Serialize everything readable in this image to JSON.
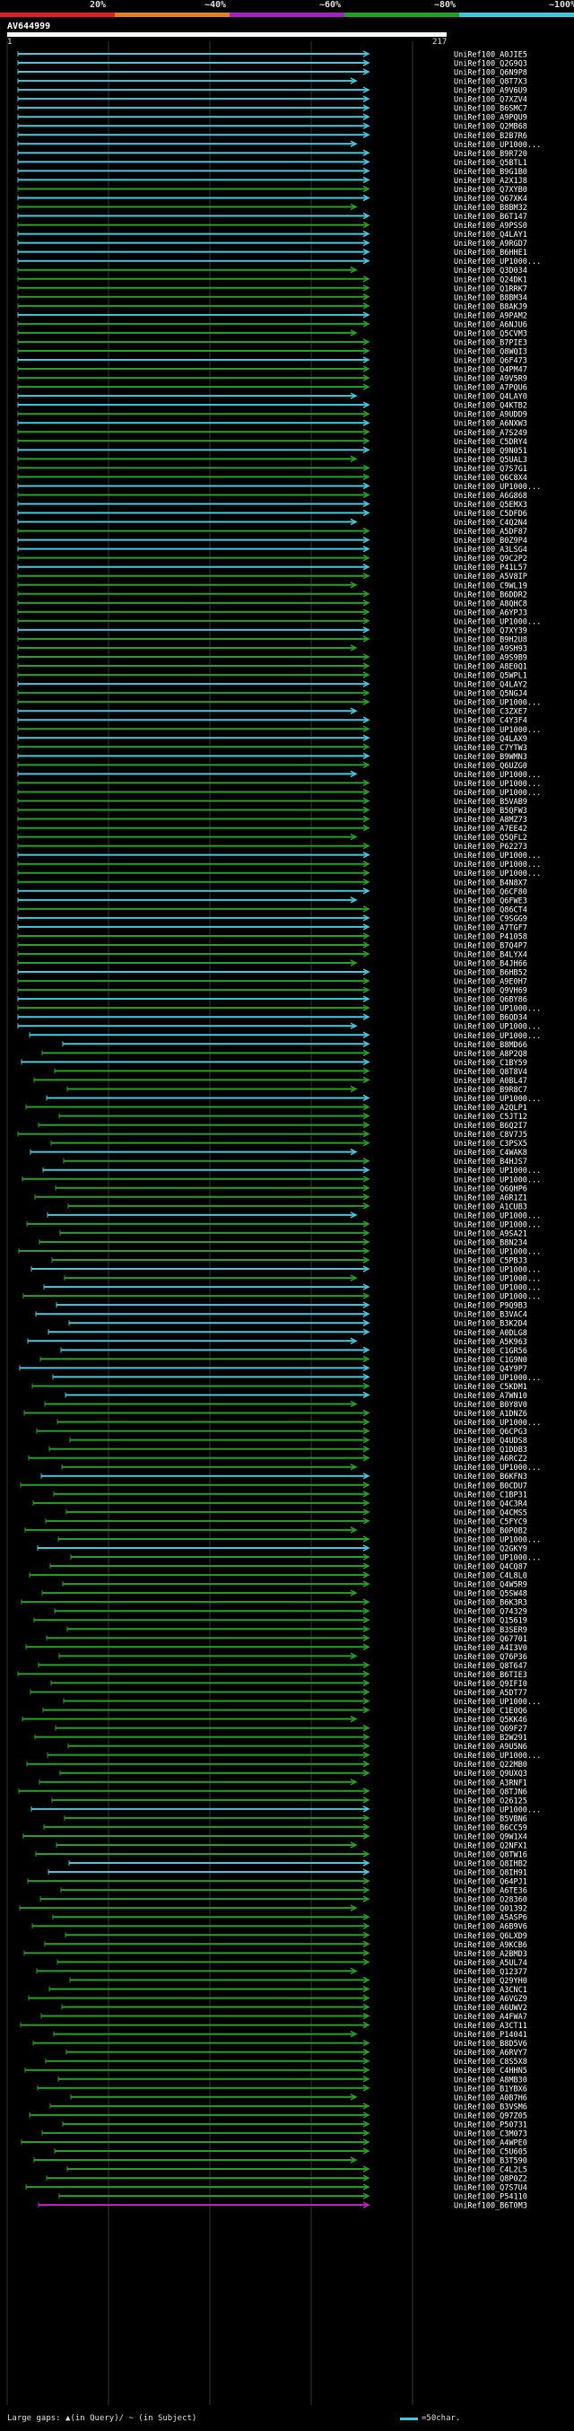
{
  "scale": {
    "ticks": [
      "20%",
      "~40%",
      "~60%",
      "~80%",
      "~100%"
    ],
    "colors": [
      "#e02020",
      "#e08020",
      "#a020c0",
      "#20a020",
      "#3cc8dc"
    ]
  },
  "query": {
    "id": "AV644999",
    "start": "1",
    "end": "217"
  },
  "colors": {
    "high": "#3cc8dc",
    "mid": "#20a020",
    "low": "#c020c0"
  },
  "hits": [
    {
      "label": "UniRef100_A0JIE5",
      "c": "high"
    },
    {
      "label": "UniRef100_Q2G9Q3",
      "c": "high"
    },
    {
      "label": "UniRef100_Q6N9P8",
      "c": "high"
    },
    {
      "label": "UniRef100_Q8T7X3",
      "c": "high"
    },
    {
      "label": "UniRef100_A9V6U9",
      "c": "high"
    },
    {
      "label": "UniRef100_Q7XZV4",
      "c": "high"
    },
    {
      "label": "UniRef100_B6SMC7",
      "c": "high"
    },
    {
      "label": "UniRef100_A9PQU9",
      "c": "high"
    },
    {
      "label": "UniRef100_Q2MB68",
      "c": "high"
    },
    {
      "label": "UniRef100_B2B7R6",
      "c": "high"
    },
    {
      "label": "UniRef100_UP1000...",
      "c": "high"
    },
    {
      "label": "UniRef100_B9R720",
      "c": "high"
    },
    {
      "label": "UniRef100_Q5BTL1",
      "c": "high"
    },
    {
      "label": "UniRef100_B9G1B0",
      "c": "high"
    },
    {
      "label": "UniRef100_A2X1J8",
      "c": "high"
    },
    {
      "label": "UniRef100_Q7XYB0",
      "c": "mid"
    },
    {
      "label": "UniRef100_Q67XK4",
      "c": "high"
    },
    {
      "label": "UniRef100_B8BM32",
      "c": "mid"
    },
    {
      "label": "UniRef100_B6T147",
      "c": "high"
    },
    {
      "label": "UniRef100_A9PSS0",
      "c": "mid"
    },
    {
      "label": "UniRef100_Q4LAY1",
      "c": "high"
    },
    {
      "label": "UniRef100_A9RGD7",
      "c": "high"
    },
    {
      "label": "UniRef100_B6HHE1",
      "c": "high"
    },
    {
      "label": "UniRef100_UP1000...",
      "c": "high"
    },
    {
      "label": "UniRef100_Q3D034",
      "c": "mid"
    },
    {
      "label": "UniRef100_Q24DK1",
      "c": "mid"
    },
    {
      "label": "UniRef100_Q1RRK7",
      "c": "mid"
    },
    {
      "label": "UniRef100_B8BM34",
      "c": "mid"
    },
    {
      "label": "UniRef100_B8AKJ9",
      "c": "mid"
    },
    {
      "label": "UniRef100_A9PAM2",
      "c": "high"
    },
    {
      "label": "UniRef100_A6NJU6",
      "c": "mid"
    },
    {
      "label": "UniRef100_Q5CVM3",
      "c": "mid"
    },
    {
      "label": "UniRef100_B7PIE3",
      "c": "mid"
    },
    {
      "label": "UniRef100_Q8WQI3",
      "c": "mid"
    },
    {
      "label": "UniRef100_Q6F473",
      "c": "high"
    },
    {
      "label": "UniRef100_Q4PM47",
      "c": "mid"
    },
    {
      "label": "UniRef100_A9V5R9",
      "c": "mid"
    },
    {
      "label": "UniRef100_A7PQU6",
      "c": "mid"
    },
    {
      "label": "UniRef100_Q4LAY0",
      "c": "high"
    },
    {
      "label": "UniRef100_Q4KTB2",
      "c": "high"
    },
    {
      "label": "UniRef100_A9UDD9",
      "c": "mid"
    },
    {
      "label": "UniRef100_A6NXW3",
      "c": "high"
    },
    {
      "label": "UniRef100_A7S249",
      "c": "mid"
    },
    {
      "label": "UniRef100_C5DRY4",
      "c": "mid"
    },
    {
      "label": "UniRef100_Q9N051",
      "c": "high"
    },
    {
      "label": "UniRef100_Q5UAL3",
      "c": "mid"
    },
    {
      "label": "UniRef100_Q7S7G1",
      "c": "mid"
    },
    {
      "label": "UniRef100_Q6C8X4",
      "c": "mid"
    },
    {
      "label": "UniRef100_UP1000...",
      "c": "high"
    },
    {
      "label": "UniRef100_A6G868",
      "c": "mid"
    },
    {
      "label": "UniRef100_Q5EMX3",
      "c": "high"
    },
    {
      "label": "UniRef100_C5DFD6",
      "c": "high"
    },
    {
      "label": "UniRef100_C4Q2N4",
      "c": "high"
    },
    {
      "label": "UniRef100_A5DF87",
      "c": "mid"
    },
    {
      "label": "UniRef100_B0Z9P4",
      "c": "high"
    },
    {
      "label": "UniRef100_A3LSG4",
      "c": "high"
    },
    {
      "label": "UniRef100_Q9C2P2",
      "c": "mid"
    },
    {
      "label": "UniRef100_P41L57",
      "c": "high"
    },
    {
      "label": "UniRef100_A5V8IP",
      "c": "mid"
    },
    {
      "label": "UniRef100_C9WL19",
      "c": "mid"
    },
    {
      "label": "UniRef100_B6DDR2",
      "c": "mid"
    },
    {
      "label": "UniRef100_A8QHC8",
      "c": "mid"
    },
    {
      "label": "UniRef100_A6YPJ3",
      "c": "mid"
    },
    {
      "label": "UniRef100_UP1000...",
      "c": "mid"
    },
    {
      "label": "UniRef100_Q7XY39",
      "c": "high"
    },
    {
      "label": "UniRef100_B9H2U8",
      "c": "mid"
    },
    {
      "label": "UniRef100_A9SH93",
      "c": "mid"
    },
    {
      "label": "UniRef100_A9S9B9",
      "c": "mid"
    },
    {
      "label": "UniRef100_A8E0Q1",
      "c": "mid"
    },
    {
      "label": "UniRef100_Q5WPL1",
      "c": "mid"
    },
    {
      "label": "UniRef100_Q4LAY2",
      "c": "high"
    },
    {
      "label": "UniRef100_Q5NGJ4",
      "c": "mid"
    },
    {
      "label": "UniRef100_UP1000...",
      "c": "mid"
    },
    {
      "label": "UniRef100_C3ZXE7",
      "c": "high"
    },
    {
      "label": "UniRef100_C4Y3F4",
      "c": "high"
    },
    {
      "label": "UniRef100_UP1000...",
      "c": "mid"
    },
    {
      "label": "UniRef100_Q4LAX9",
      "c": "high"
    },
    {
      "label": "UniRef100_C7YTW3",
      "c": "mid"
    },
    {
      "label": "UniRef100_B9WMN3",
      "c": "high"
    },
    {
      "label": "UniRef100_Q6UZG0",
      "c": "mid"
    },
    {
      "label": "UniRef100_UP1000...",
      "c": "high"
    },
    {
      "label": "UniRef100_UP1000...",
      "c": "mid"
    },
    {
      "label": "UniRef100_UP1000...",
      "c": "mid"
    },
    {
      "label": "UniRef100_B5VAB9",
      "c": "mid"
    },
    {
      "label": "UniRef100_B5QFW3",
      "c": "mid"
    },
    {
      "label": "UniRef100_A8MZ73",
      "c": "mid"
    },
    {
      "label": "UniRef100_A7EE42",
      "c": "mid"
    },
    {
      "label": "UniRef100_Q5QFL2",
      "c": "mid"
    },
    {
      "label": "UniRef100_P62273",
      "c": "mid"
    },
    {
      "label": "UniRef100_UP1000...",
      "c": "high"
    },
    {
      "label": "UniRef100_UP1000...",
      "c": "mid"
    },
    {
      "label": "UniRef100_UP1000...",
      "c": "mid"
    },
    {
      "label": "UniRef100_B4N8X7",
      "c": "mid"
    },
    {
      "label": "UniRef100_Q6CF80",
      "c": "high"
    },
    {
      "label": "UniRef100_Q6FWE3",
      "c": "high"
    },
    {
      "label": "UniRef100_Q86CT4",
      "c": "mid"
    },
    {
      "label": "UniRef100_C9SGG9",
      "c": "high"
    },
    {
      "label": "UniRef100_A7TGF7",
      "c": "high"
    },
    {
      "label": "UniRef100_P41058",
      "c": "mid"
    },
    {
      "label": "UniRef100_B7Q4P7",
      "c": "mid"
    },
    {
      "label": "UniRef100_B4LYX4",
      "c": "mid"
    },
    {
      "label": "UniRef100_B4JH66",
      "c": "mid"
    },
    {
      "label": "UniRef100_B6HB52",
      "c": "high"
    },
    {
      "label": "UniRef100_A9E0H7",
      "c": "mid"
    },
    {
      "label": "UniRef100_Q9VH69",
      "c": "mid"
    },
    {
      "label": "UniRef100_Q6BY86",
      "c": "high"
    },
    {
      "label": "UniRef100_UP1000...",
      "c": "mid"
    },
    {
      "label": "UniRef100_B6QD34",
      "c": "high"
    },
    {
      "label": "UniRef100_UP1000...",
      "c": "high"
    },
    {
      "label": "UniRef100_UP1000...",
      "c": "high"
    },
    {
      "label": "UniRef100_B8MD66",
      "c": "high"
    },
    {
      "label": "UniRef100_A8P2Q8",
      "c": "mid"
    },
    {
      "label": "UniRef100_C1BY59",
      "c": "high"
    },
    {
      "label": "UniRef100_Q8T8V4",
      "c": "mid"
    },
    {
      "label": "UniRef100_A0BL47",
      "c": "mid"
    },
    {
      "label": "UniRef100_B9R8C7",
      "c": "mid"
    },
    {
      "label": "UniRef100_UP1000...",
      "c": "high"
    },
    {
      "label": "UniRef100_A2QLP1",
      "c": "mid"
    },
    {
      "label": "UniRef100_C5JT12",
      "c": "mid"
    },
    {
      "label": "UniRef100_B6Q2I7",
      "c": "mid"
    },
    {
      "label": "UniRef100_C8V7J5",
      "c": "mid"
    },
    {
      "label": "UniRef100_C3PSX5",
      "c": "mid"
    },
    {
      "label": "UniRef100_C4WAK8",
      "c": "high"
    },
    {
      "label": "UniRef100_B4HJS7",
      "c": "mid"
    },
    {
      "label": "UniRef100_UP1000...",
      "c": "high"
    },
    {
      "label": "UniRef100_UP1000...",
      "c": "mid"
    },
    {
      "label": "UniRef100_Q6QHP6",
      "c": "mid"
    },
    {
      "label": "UniRef100_A6R1Z1",
      "c": "mid"
    },
    {
      "label": "UniRef100_A1CUB3",
      "c": "mid"
    },
    {
      "label": "UniRef100_UP1000...",
      "c": "high"
    },
    {
      "label": "UniRef100_UP1000...",
      "c": "mid"
    },
    {
      "label": "UniRef100_A9SA21",
      "c": "mid"
    },
    {
      "label": "UniRef100_B8N234",
      "c": "mid"
    },
    {
      "label": "UniRef100_UP1000...",
      "c": "mid"
    },
    {
      "label": "UniRef100_C5PBJ3",
      "c": "mid"
    },
    {
      "label": "UniRef100_UP1000...",
      "c": "high"
    },
    {
      "label": "UniRef100_UP1000...",
      "c": "mid"
    },
    {
      "label": "UniRef100_UP1000...",
      "c": "high"
    },
    {
      "label": "UniRef100_UP1000...",
      "c": "mid"
    },
    {
      "label": "UniRef100_P9Q9B3",
      "c": "high"
    },
    {
      "label": "UniRef100_B3VAC4",
      "c": "high"
    },
    {
      "label": "UniRef100_B3K2D4",
      "c": "high"
    },
    {
      "label": "UniRef100_A0DLG8",
      "c": "high"
    },
    {
      "label": "UniRef100_A5K963",
      "c": "high"
    },
    {
      "label": "UniRef100_C1GR56",
      "c": "high"
    },
    {
      "label": "UniRef100_C1G9N0",
      "c": "mid"
    },
    {
      "label": "UniRef100_Q4Y9P7",
      "c": "high"
    },
    {
      "label": "UniRef100_UP1000...",
      "c": "high"
    },
    {
      "label": "UniRef100_C5KDM1",
      "c": "mid"
    },
    {
      "label": "UniRef100_A7WN10",
      "c": "high"
    },
    {
      "label": "UniRef100_B0Y8V0",
      "c": "mid"
    },
    {
      "label": "UniRef100_A1DNZ6",
      "c": "mid"
    },
    {
      "label": "UniRef100_UP1000...",
      "c": "mid"
    },
    {
      "label": "UniRef100_Q6CPG3",
      "c": "mid"
    },
    {
      "label": "UniRef100_Q4UDS8",
      "c": "mid"
    },
    {
      "label": "UniRef100_Q1DDB3",
      "c": "mid"
    },
    {
      "label": "UniRef100_A6RCZ2",
      "c": "mid"
    },
    {
      "label": "UniRef100_UP1000...",
      "c": "mid"
    },
    {
      "label": "UniRef100_B6KFN3",
      "c": "high"
    },
    {
      "label": "UniRef100_B0CDU7",
      "c": "mid"
    },
    {
      "label": "UniRef100_C1BP31",
      "c": "mid"
    },
    {
      "label": "UniRef100_Q4C3R4",
      "c": "mid"
    },
    {
      "label": "UniRef100_Q4CMS5",
      "c": "mid"
    },
    {
      "label": "UniRef100_C5FYC9",
      "c": "mid"
    },
    {
      "label": "UniRef100_B0P0B2",
      "c": "mid"
    },
    {
      "label": "UniRef100_UP1000...",
      "c": "mid"
    },
    {
      "label": "UniRef100_Q2GKY9",
      "c": "high"
    },
    {
      "label": "UniRef100_UP1000...",
      "c": "mid"
    },
    {
      "label": "UniRef100_Q4CQ87",
      "c": "mid"
    },
    {
      "label": "UniRef100_C4L8L0",
      "c": "mid"
    },
    {
      "label": "UniRef100_Q4W5R9",
      "c": "mid"
    },
    {
      "label": "UniRef100_Q5SW48",
      "c": "mid"
    },
    {
      "label": "UniRef100_B6K3R3",
      "c": "mid"
    },
    {
      "label": "UniRef100_Q74329",
      "c": "mid"
    },
    {
      "label": "UniRef100_Q15619",
      "c": "mid"
    },
    {
      "label": "UniRef100_B3SER9",
      "c": "mid"
    },
    {
      "label": "UniRef100_Q67701",
      "c": "mid"
    },
    {
      "label": "UniRef100_A4I3V0",
      "c": "mid"
    },
    {
      "label": "UniRef100_Q76P36",
      "c": "mid"
    },
    {
      "label": "UniRef100_Q8T647",
      "c": "mid"
    },
    {
      "label": "UniRef100_B6TIE3",
      "c": "mid"
    },
    {
      "label": "UniRef100_Q9IFI0",
      "c": "mid"
    },
    {
      "label": "UniRef100_A5DT77",
      "c": "mid"
    },
    {
      "label": "UniRef100_UP1000...",
      "c": "mid"
    },
    {
      "label": "UniRef100_C1E0Q6",
      "c": "mid"
    },
    {
      "label": "UniRef100_Q5KK46",
      "c": "mid"
    },
    {
      "label": "UniRef100_Q69F27",
      "c": "mid"
    },
    {
      "label": "UniRef100_B2W291",
      "c": "mid"
    },
    {
      "label": "UniRef100_A9U5N6",
      "c": "mid"
    },
    {
      "label": "UniRef100_UP1000...",
      "c": "mid"
    },
    {
      "label": "UniRef100_Q22MB0",
      "c": "mid"
    },
    {
      "label": "UniRef100_Q9UXQ3",
      "c": "mid"
    },
    {
      "label": "UniRef100_A3RNF1",
      "c": "mid"
    },
    {
      "label": "UniRef100_Q8TJN6",
      "c": "mid"
    },
    {
      "label": "UniRef100_O26125",
      "c": "mid"
    },
    {
      "label": "UniRef100_UP1000...",
      "c": "high"
    },
    {
      "label": "UniRef100_B5VBN6",
      "c": "mid"
    },
    {
      "label": "UniRef100_B6CC59",
      "c": "mid"
    },
    {
      "label": "UniRef100_Q9W1X4",
      "c": "mid"
    },
    {
      "label": "UniRef100_Q2NFX1",
      "c": "mid"
    },
    {
      "label": "UniRef100_Q8TW16",
      "c": "mid"
    },
    {
      "label": "UniRef100_Q8IHB2",
      "c": "high"
    },
    {
      "label": "UniRef100_Q8IH91",
      "c": "high"
    },
    {
      "label": "UniRef100_Q64PJ1",
      "c": "mid"
    },
    {
      "label": "UniRef100_A6TE36",
      "c": "mid"
    },
    {
      "label": "UniRef100_O28360",
      "c": "mid"
    },
    {
      "label": "UniRef100_Q01392",
      "c": "mid"
    },
    {
      "label": "UniRef100_A5ASP6",
      "c": "mid"
    },
    {
      "label": "UniRef100_A6B9V6",
      "c": "mid"
    },
    {
      "label": "UniRef100_Q6LXD9",
      "c": "mid"
    },
    {
      "label": "UniRef100_A9KCB6",
      "c": "mid"
    },
    {
      "label": "UniRef100_A2BMD3",
      "c": "mid"
    },
    {
      "label": "UniRef100_A5UL74",
      "c": "mid"
    },
    {
      "label": "UniRef100_Q12377",
      "c": "mid"
    },
    {
      "label": "UniRef100_Q29YH0",
      "c": "mid"
    },
    {
      "label": "UniRef100_A3CNC1",
      "c": "mid"
    },
    {
      "label": "UniRef100_A6VGZ9",
      "c": "mid"
    },
    {
      "label": "UniRef100_A6UWV2",
      "c": "mid"
    },
    {
      "label": "UniRef100_A4FWA7",
      "c": "mid"
    },
    {
      "label": "UniRef100_A3CT11",
      "c": "mid"
    },
    {
      "label": "UniRef100_P14041",
      "c": "mid"
    },
    {
      "label": "UniRef100_B8D5V6",
      "c": "mid"
    },
    {
      "label": "UniRef100_A6RVY7",
      "c": "mid"
    },
    {
      "label": "UniRef100_C8S5X8",
      "c": "mid"
    },
    {
      "label": "UniRef100_C4HHN5",
      "c": "mid"
    },
    {
      "label": "UniRef100_A8MB30",
      "c": "mid"
    },
    {
      "label": "UniRef100_B1YBX6",
      "c": "mid"
    },
    {
      "label": "UniRef100_A0B7H6",
      "c": "mid"
    },
    {
      "label": "UniRef100_B3VSM6",
      "c": "mid"
    },
    {
      "label": "UniRef100_Q97Z05",
      "c": "mid"
    },
    {
      "label": "UniRef100_P50731",
      "c": "mid"
    },
    {
      "label": "UniRef100_C3M073",
      "c": "mid"
    },
    {
      "label": "UniRef100_A4WPE0",
      "c": "mid"
    },
    {
      "label": "UniRef100_C5U605",
      "c": "mid"
    },
    {
      "label": "UniRef100_B3T590",
      "c": "mid"
    },
    {
      "label": "UniRef100_C4L2L5",
      "c": "mid"
    },
    {
      "label": "UniRef100_Q8P0Z2",
      "c": "mid"
    },
    {
      "label": "UniRef100_Q7S7U4",
      "c": "mid"
    },
    {
      "label": "UniRef100_P54110",
      "c": "mid"
    },
    {
      "label": "UniRef100_B6T0M3",
      "c": "low"
    }
  ],
  "footer": {
    "left": "Large gaps: ▲(in Query)/ ~ (in Subject)",
    "right": "=50char."
  }
}
